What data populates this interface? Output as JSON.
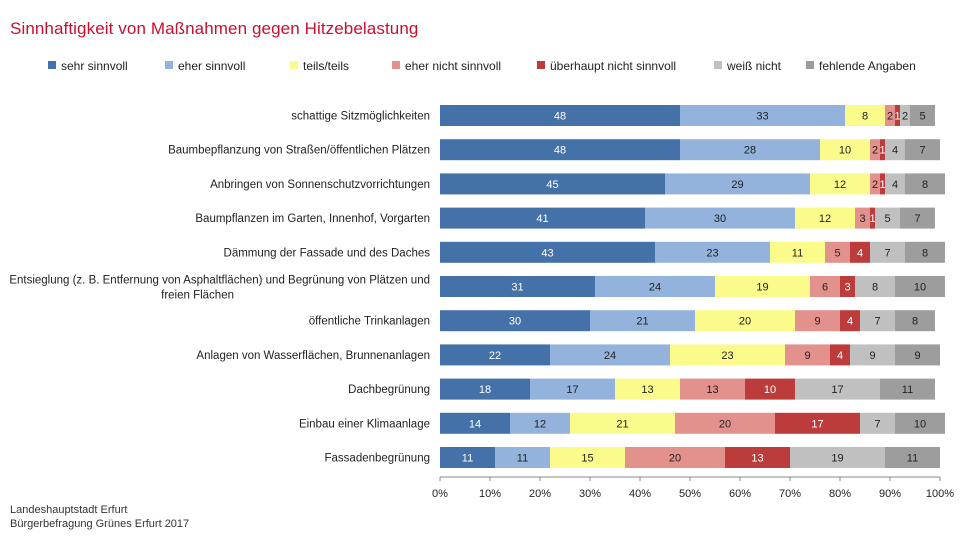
{
  "title": "Sinnhaftigkeit von Maßnahmen gegen Hitzebelastung",
  "source_lines": [
    "Landeshauptstadt Erfurt",
    "Bürgerbefragung Grünes Erfurt 2017"
  ],
  "chart_data": {
    "type": "bar",
    "orientation": "horizontal",
    "stacked": true,
    "xlim": [
      0,
      100
    ],
    "ticks": [
      "0%",
      "10%",
      "20%",
      "30%",
      "40%",
      "50%",
      "60%",
      "70%",
      "80%",
      "90%",
      "100%"
    ],
    "categories": [
      "schattige Sitzmöglichkeiten",
      "Baumbepflanzung von Straßen/öffentlichen Plätzen",
      "Anbringen von Sonnenschutzvorrichtungen",
      "Baumpflanzen im Garten, Innenhof, Vorgarten",
      "Dämmung der Fassade und des Daches",
      "Entsieglung (z. B. Entfernung von Asphaltflächen) und Begrünung von Plätzen und freien Flächen",
      "öffentliche Trinkanlagen",
      "Anlagen von Wasserflächen, Brunnenanlagen",
      "Dachbegrünung",
      "Einbau einer Klimaanlage",
      "Fassadenbegrünung"
    ],
    "series": [
      {
        "name": "sehr sinnvoll",
        "color": "#4472a8",
        "label_color": "#ffffff",
        "values": [
          48,
          48,
          45,
          41,
          43,
          31,
          30,
          22,
          18,
          14,
          11
        ]
      },
      {
        "name": "eher sinnvoll",
        "color": "#93b3dc",
        "label_color": "#222222",
        "values": [
          33,
          28,
          29,
          30,
          23,
          24,
          21,
          24,
          17,
          12,
          11
        ]
      },
      {
        "name": "teils/teils",
        "color": "#fbfb8c",
        "label_color": "#222222",
        "values": [
          8,
          10,
          12,
          12,
          11,
          19,
          20,
          23,
          13,
          21,
          15
        ]
      },
      {
        "name": "eher nicht sinnvoll",
        "color": "#e3918d",
        "label_color": "#222222",
        "values": [
          2,
          2,
          2,
          3,
          5,
          6,
          9,
          9,
          13,
          20,
          20
        ]
      },
      {
        "name": "überhaupt nicht sinnvoll",
        "color": "#bc3c3c",
        "label_color": "#ffffff",
        "values": [
          1,
          1,
          1,
          1,
          4,
          3,
          4,
          4,
          10,
          17,
          13
        ]
      },
      {
        "name": "weiß nicht",
        "color": "#c0c0c0",
        "label_color": "#222222",
        "values": [
          2,
          4,
          4,
          5,
          7,
          8,
          7,
          9,
          17,
          7,
          19
        ]
      },
      {
        "name": "fehlende Angaben",
        "color": "#9d9d9d",
        "label_color": "#222222",
        "values": [
          5,
          7,
          8,
          7,
          8,
          10,
          8,
          9,
          11,
          10,
          11
        ]
      }
    ],
    "legend_position": "top",
    "grid": false
  }
}
